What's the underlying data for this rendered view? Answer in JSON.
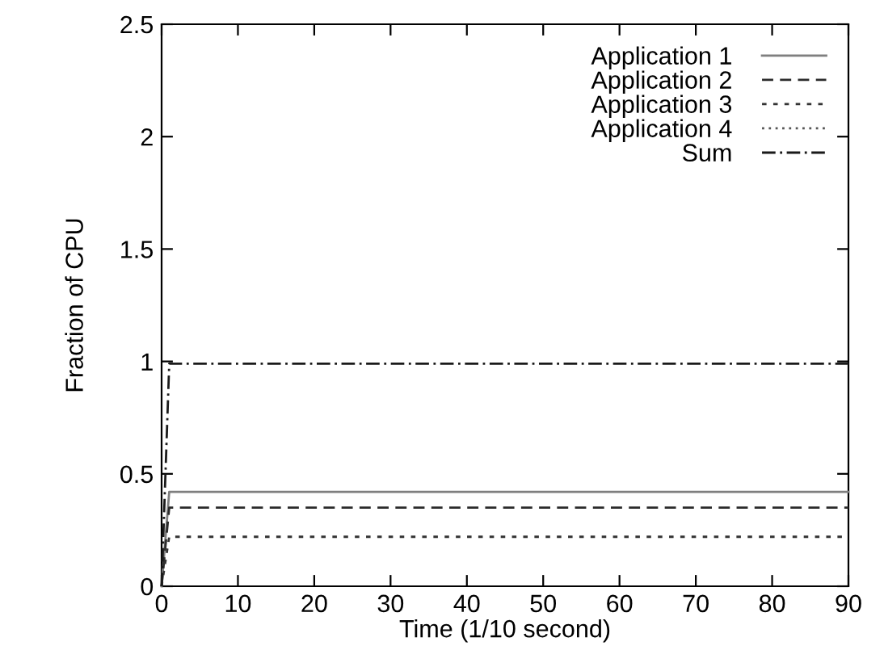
{
  "chart_data": {
    "type": "line",
    "xlabel": "Time (1/10 second)",
    "ylabel": "Fraction of CPU",
    "x": [
      0,
      1,
      90
    ],
    "series": [
      {
        "name": "Application 1",
        "color": "#7f7f7f",
        "line_style": "solid",
        "values": [
          0,
          0.42,
          0.42
        ]
      },
      {
        "name": "Application 2",
        "color": "#2b2b2b",
        "line_style": "dashed",
        "values": [
          0,
          0.35,
          0.35
        ]
      },
      {
        "name": "Application 3",
        "color": "#333333",
        "line_style": "dotted",
        "values": [
          0,
          0.22,
          0.22
        ]
      },
      {
        "name": "Application 4",
        "color": "#555555",
        "line_style": "finedotted",
        "values": [
          null,
          null,
          null
        ]
      },
      {
        "name": "Sum",
        "color": "#1a1a1a",
        "line_style": "dashdot",
        "values": [
          0,
          0.99,
          0.99
        ]
      }
    ],
    "xlim": [
      0,
      90
    ],
    "ylim": [
      0,
      2.5
    ],
    "xticks": [
      0,
      10,
      20,
      30,
      40,
      50,
      60,
      70,
      80,
      90
    ],
    "yticks": [
      0,
      0.5,
      1,
      1.5,
      2,
      2.5
    ],
    "grid": false,
    "legend": "top right",
    "marker": "none"
  }
}
